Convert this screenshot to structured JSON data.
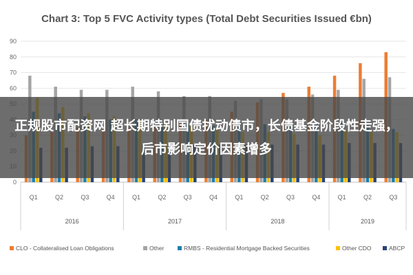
{
  "overlay": {
    "text": "正规股市配资网 超长期特别国债扰动债市，长债基金阶段性走强，后市影响定价因素增多"
  },
  "chart_data": {
    "type": "bar",
    "title": "Chart 3: Top 5 FVC Activity types (Total Debt Securities Issued €bn)",
    "xlabel": "",
    "ylabel": "",
    "ylim": [
      0,
      90
    ],
    "yticks": [
      0,
      10,
      20,
      30,
      40,
      50,
      60,
      70,
      80,
      90
    ],
    "grid": true,
    "legend_position": "bottom",
    "categories": [
      "Q1",
      "Q2",
      "Q3",
      "Q4",
      "Q1",
      "Q2",
      "Q3",
      "Q4",
      "Q1",
      "Q2",
      "Q3",
      "Q4",
      "Q1",
      "Q2",
      "Q3"
    ],
    "years": [
      {
        "label": "2016",
        "span": 4
      },
      {
        "label": "2017",
        "span": 4
      },
      {
        "label": "2018",
        "span": 4
      },
      {
        "label": "2019",
        "span": 3
      }
    ],
    "series": [
      {
        "name": "CLO - Collateralised Loan Obligations",
        "color": "#ED7D31",
        "values": [
          30,
          32,
          35,
          34,
          35,
          36,
          38,
          40,
          45,
          51,
          57,
          61,
          68,
          76,
          83
        ]
      },
      {
        "name": "Other",
        "color": "#A5A5A5",
        "values": [
          68,
          61,
          59,
          59,
          61,
          58,
          55,
          55,
          52,
          53,
          53,
          56,
          59,
          66,
          67
        ]
      },
      {
        "name": "RMBS - Residential Mortgage Backed Securities",
        "color": "#1E7FA8",
        "values": [
          45,
          44,
          42,
          40,
          40,
          38,
          37,
          36,
          37,
          37,
          36,
          38,
          38,
          37,
          34
        ]
      },
      {
        "name": "Other CDO",
        "color": "#FFC000",
        "values": [
          54,
          48,
          44,
          42,
          40,
          38,
          36,
          34,
          32,
          32,
          31,
          30,
          33,
          32,
          32
        ]
      },
      {
        "name": "ABCP",
        "color": "#264478",
        "values": [
          22,
          22,
          23,
          23,
          24,
          24,
          24,
          24,
          24,
          24,
          24,
          24,
          25,
          25,
          25
        ]
      }
    ]
  }
}
